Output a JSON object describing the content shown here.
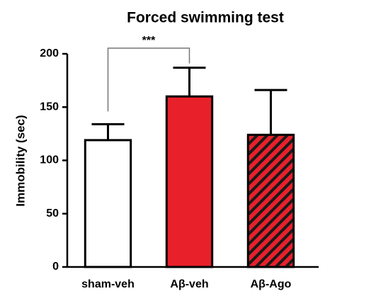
{
  "chart_data": {
    "type": "bar",
    "title": "Forced swimming test",
    "ylabel": "Immobility (sec)",
    "categories": [
      "sham-veh",
      "Aβ-veh",
      "Aβ-Ago"
    ],
    "values": [
      119,
      160,
      124
    ],
    "errors": [
      15,
      27,
      42
    ],
    "colors": [
      "#ffffff",
      "#e8202a",
      "#e8202a"
    ],
    "hatch": [
      false,
      false,
      true
    ],
    "ylim": [
      0,
      200
    ],
    "yticks": [
      0,
      50,
      100,
      150,
      200
    ],
    "annotation": {
      "text": "***",
      "between": [
        0,
        1
      ]
    }
  }
}
